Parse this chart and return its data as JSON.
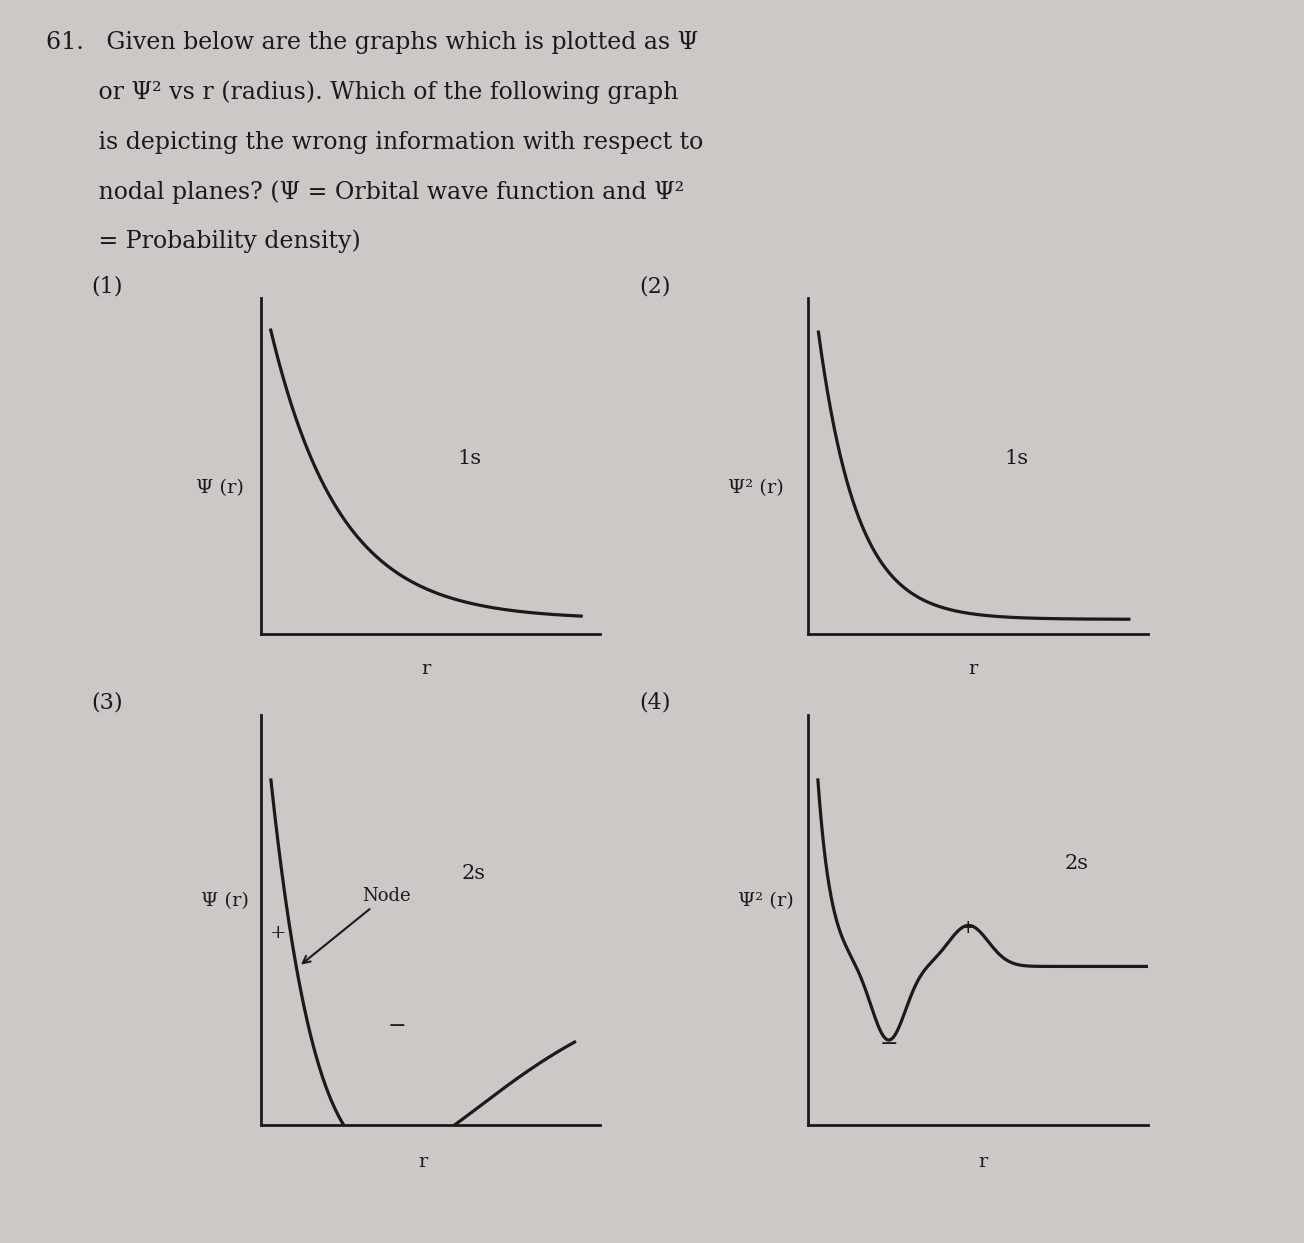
{
  "bg_color": "#ccc8c5",
  "line_color": "#1a1a1a",
  "text_color": "#1a1a1a",
  "graph1": {
    "label": "(1)",
    "ylabel": "Ψ (r)",
    "xlabel": "r",
    "orbital": "1s"
  },
  "graph2": {
    "label": "(2)",
    "ylabel": "Ψ² (r)",
    "xlabel": "r",
    "orbital": "1s"
  },
  "graph3": {
    "label": "(3)",
    "ylabel": "Ψ (r)",
    "xlabel": "r",
    "orbital": "2s",
    "node_label": "Node"
  },
  "graph4": {
    "label": "(4)",
    "ylabel": "Ψ² (r)",
    "xlabel": "r",
    "orbital": "2s"
  }
}
